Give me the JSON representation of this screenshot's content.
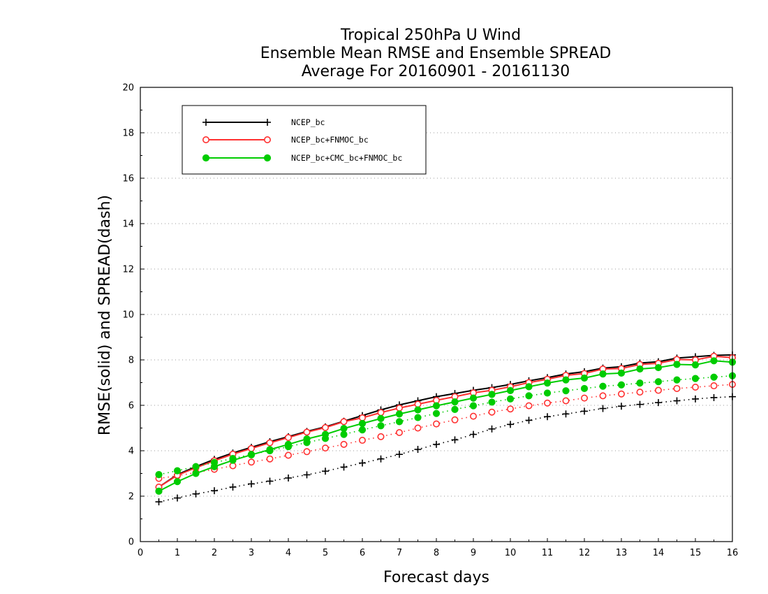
{
  "chart_data": {
    "type": "line",
    "title": [
      "Tropical 250hPa U Wind",
      "Ensemble Mean RMSE and Ensemble SPREAD",
      "Average For 20160901 - 20161130"
    ],
    "xlabel": "Forecast days",
    "ylabel": "RMSE(solid) and SPREAD(dash)",
    "xlim": [
      0,
      16
    ],
    "ylim": [
      0,
      20
    ],
    "xticks": [
      "0",
      "1",
      "2",
      "3",
      "4",
      "5",
      "6",
      "7",
      "8",
      "9",
      "10",
      "11",
      "12",
      "13",
      "14",
      "15",
      "16"
    ],
    "yticks": [
      "0",
      "2",
      "4",
      "6",
      "8",
      "10",
      "12",
      "14",
      "16",
      "18",
      "20"
    ],
    "grid": "horizontal dotted",
    "legend_placement": "top-left",
    "x": [
      0.5,
      1,
      1.5,
      2,
      2.5,
      3,
      3.5,
      4,
      4.5,
      5,
      5.5,
      6,
      6.5,
      7,
      7.5,
      8,
      8.5,
      9,
      9.5,
      10,
      10.5,
      11,
      11.5,
      12,
      12.5,
      13,
      13.5,
      14,
      14.5,
      15,
      15.5,
      16
    ],
    "series": [
      {
        "name": "NCEP_bc",
        "color": "#000000",
        "marker": "plus",
        "rmse": [
          2.4,
          2.95,
          3.3,
          3.62,
          3.9,
          4.15,
          4.4,
          4.62,
          4.85,
          5.05,
          5.3,
          5.55,
          5.8,
          6.02,
          6.2,
          6.38,
          6.52,
          6.66,
          6.78,
          6.92,
          7.08,
          7.22,
          7.38,
          7.48,
          7.64,
          7.7,
          7.86,
          7.92,
          8.08,
          8.14,
          8.2,
          8.22
        ],
        "spread": [
          1.75,
          1.92,
          2.1,
          2.24,
          2.4,
          2.54,
          2.66,
          2.8,
          2.94,
          3.1,
          3.28,
          3.46,
          3.64,
          3.84,
          4.06,
          4.28,
          4.48,
          4.72,
          4.96,
          5.16,
          5.34,
          5.5,
          5.62,
          5.74,
          5.86,
          5.96,
          6.04,
          6.12,
          6.2,
          6.28,
          6.34,
          6.38
        ]
      },
      {
        "name": "NCEP_bc+FNMOC_bc",
        "color": "#ff3030",
        "marker": "open-circle",
        "rmse": [
          2.4,
          2.92,
          3.25,
          3.56,
          3.85,
          4.1,
          4.35,
          4.58,
          4.82,
          5.02,
          5.28,
          5.45,
          5.68,
          5.88,
          6.05,
          6.22,
          6.38,
          6.55,
          6.66,
          6.82,
          7.0,
          7.15,
          7.32,
          7.4,
          7.6,
          7.62,
          7.8,
          7.85,
          8.02,
          8.0,
          8.16,
          8.1
        ],
        "spread": [
          2.78,
          2.9,
          3.04,
          3.18,
          3.34,
          3.5,
          3.64,
          3.8,
          3.96,
          4.12,
          4.28,
          4.46,
          4.62,
          4.8,
          5.0,
          5.18,
          5.36,
          5.52,
          5.7,
          5.84,
          5.98,
          6.1,
          6.2,
          6.32,
          6.42,
          6.5,
          6.58,
          6.66,
          6.74,
          6.8,
          6.86,
          6.92
        ]
      },
      {
        "name": "NCEP_bc+CMC_bc+FNMOC_bc",
        "color": "#00cc00",
        "marker": "filled-circle",
        "rmse": [
          2.22,
          2.64,
          3.0,
          3.3,
          3.58,
          3.82,
          4.05,
          4.28,
          4.52,
          4.72,
          4.98,
          5.2,
          5.42,
          5.62,
          5.8,
          5.98,
          6.15,
          6.32,
          6.48,
          6.65,
          6.82,
          6.98,
          7.12,
          7.2,
          7.38,
          7.42,
          7.6,
          7.66,
          7.8,
          7.78,
          7.96,
          7.9
        ],
        "spread": [
          2.95,
          3.12,
          3.3,
          3.48,
          3.66,
          3.84,
          4.0,
          4.18,
          4.36,
          4.54,
          4.72,
          4.92,
          5.1,
          5.28,
          5.46,
          5.64,
          5.82,
          5.98,
          6.14,
          6.28,
          6.42,
          6.54,
          6.64,
          6.74,
          6.84,
          6.9,
          6.98,
          7.04,
          7.12,
          7.18,
          7.24,
          7.3
        ]
      }
    ]
  }
}
